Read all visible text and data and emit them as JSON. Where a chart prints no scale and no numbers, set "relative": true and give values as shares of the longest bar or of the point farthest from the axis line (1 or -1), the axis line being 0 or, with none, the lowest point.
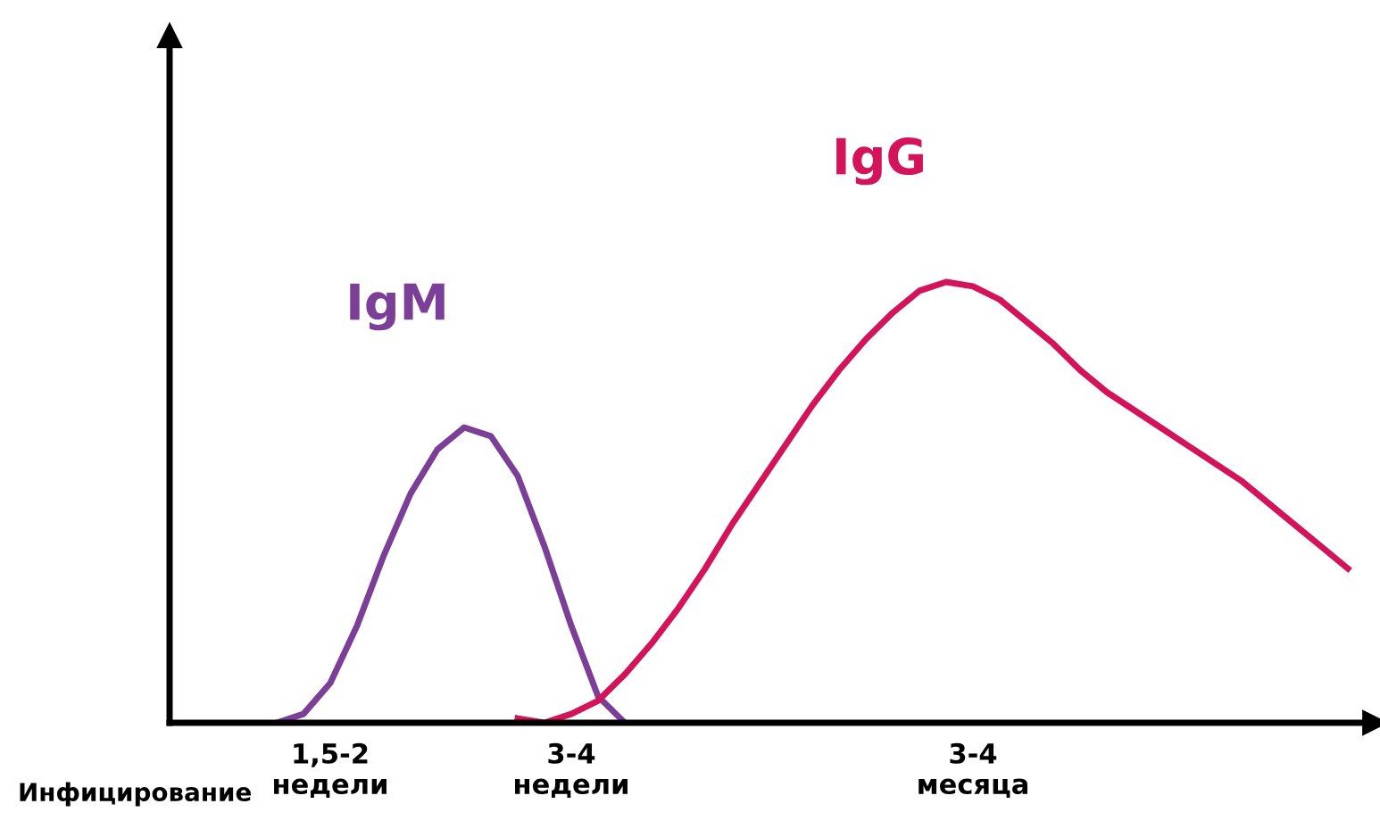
{
  "chart_data": {
    "type": "line",
    "relative": true,
    "categories": [
      null,
      null,
      null,
      null,
      null,
      null,
      "1,5-2\nнедели",
      null,
      null,
      null,
      null,
      null,
      null,
      null,
      null,
      "3-4\nнедели",
      null,
      null,
      null,
      null,
      null,
      null,
      null,
      null,
      null,
      null,
      null,
      null,
      null,
      null,
      "3-4\nмесяца",
      null,
      null,
      null,
      null,
      null,
      null,
      null,
      null,
      null,
      null,
      null,
      null,
      null,
      null
    ],
    "annotations": [
      "Инфицирование"
    ],
    "grid": false,
    "legend": false,
    "marker": "none",
    "line_style": "solid",
    "series": [
      {
        "name": "IgM",
        "color": "#7b3f98",
        "values": [
          null,
          null,
          null,
          null,
          0,
          0.02,
          0.09,
          0.22,
          0.38,
          0.52,
          0.62,
          0.67,
          0.65,
          0.56,
          0.4,
          0.22,
          0.06,
          0,
          null,
          null,
          null,
          null,
          null,
          null,
          null,
          null,
          null,
          null,
          null,
          null,
          null,
          null,
          null,
          null,
          null,
          null,
          null,
          null,
          null,
          null,
          null,
          null,
          null,
          null,
          null
        ]
      },
      {
        "name": "IgG",
        "color": "#d4145a",
        "values": [
          null,
          null,
          null,
          null,
          null,
          null,
          null,
          null,
          null,
          null,
          null,
          null,
          null,
          0.01,
          0,
          0.02,
          0.05,
          0.11,
          0.18,
          0.26,
          0.35,
          0.45,
          0.54,
          0.63,
          0.72,
          0.8,
          0.87,
          0.93,
          0.98,
          1,
          0.99,
          0.96,
          0.91,
          0.86,
          0.8,
          0.75,
          0.71,
          0.67,
          0.63,
          0.59,
          0.55,
          0.5,
          0.45,
          0.4,
          0.35
        ]
      }
    ]
  }
}
